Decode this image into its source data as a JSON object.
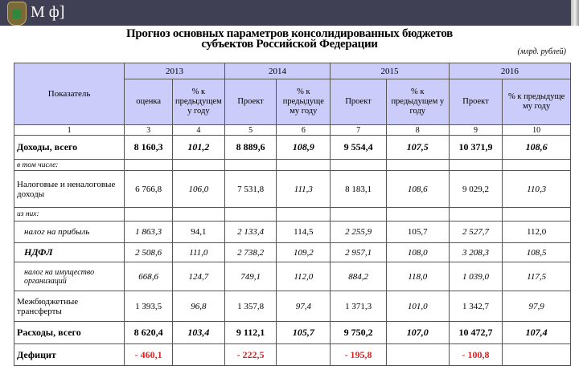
{
  "app": {
    "brand": "М ф]",
    "title_line1": "Прогноз основных параметров консолидированных бюджетов",
    "title_line2": "субъектов Российской Федерации",
    "unit": "(млрд. рублей)"
  },
  "header": {
    "indicator": "Показатель",
    "years": [
      "2013",
      "2014",
      "2015",
      "2016"
    ],
    "sub": [
      "оценка",
      "% к предыдущем у году",
      "Проект",
      "% к предыдуще му году",
      "Проект",
      "% к предыдущем у году",
      "Проект",
      "% к предыдуще му году"
    ],
    "numbers": [
      "1",
      "3",
      "4",
      "5",
      "6",
      "7",
      "8",
      "9",
      "10"
    ]
  },
  "rows": [
    {
      "label": "Доходы, всего",
      "values": [
        "8 160,3",
        "101,2",
        "8 889,6",
        "108,9",
        "9 554,4",
        "107,5",
        "10 371,9",
        "108,6"
      ]
    },
    {
      "label": "в том числе:"
    },
    {
      "label": "Налоговые и неналоговые доходы",
      "values": [
        "6 766,8",
        "106,0",
        "7 531,8",
        "111,3",
        "8 183,1",
        "108,6",
        "9 029,2",
        "110,3"
      ]
    },
    {
      "label": "из них:"
    },
    {
      "label": "налог на прибыль",
      "values": [
        "1 863,3",
        "94,1",
        "2 133,4",
        "114,5",
        "2 255,9",
        "105,7",
        "2  527,7",
        "112,0"
      ]
    },
    {
      "label": "НДФЛ",
      "values": [
        "2 508,6",
        "111,0",
        "2 738,2",
        "109,2",
        "2 957,1",
        "108,0",
        "3 208,3",
        "108,5"
      ]
    },
    {
      "label": "налог на имущество организаций",
      "values": [
        "668,6",
        "124,7",
        "749,1",
        "112,0",
        "884,2",
        "118,0",
        "1 039,0",
        "117,5"
      ]
    },
    {
      "label": "Межбюджетные трансферты",
      "values": [
        "1 393,5",
        "96,8",
        "1 357,8",
        "97,4",
        "1 371,3",
        "101,0",
        "1 342,7",
        "97,9"
      ]
    },
    {
      "label": "Расходы, всего",
      "values": [
        "8 620,4",
        "103,4",
        "9 112,1",
        "105,7",
        "9 750,2",
        "107,0",
        "10 472,7",
        "107,4"
      ]
    },
    {
      "label": "Дефицит",
      "values": [
        "- 460,1",
        "",
        "- 222,5",
        "",
        "- 195,8",
        "",
        "- 100,8",
        ""
      ]
    }
  ]
}
